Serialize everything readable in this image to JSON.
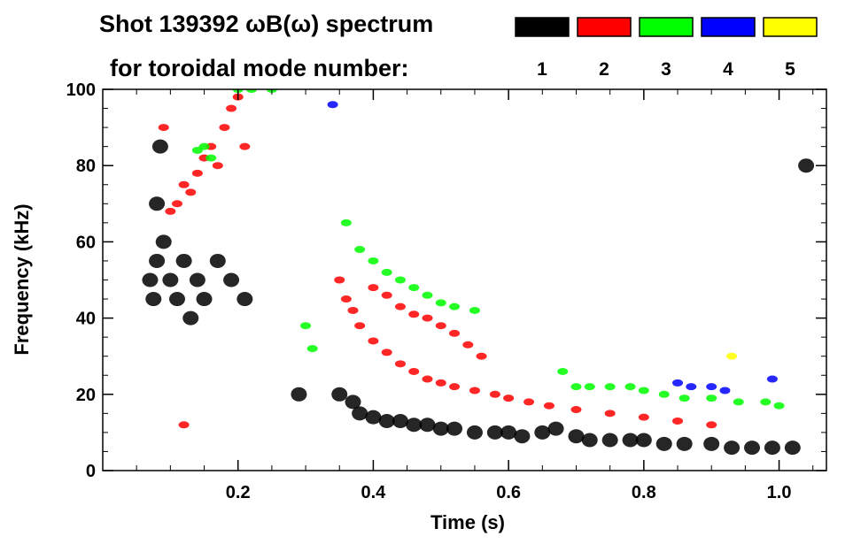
{
  "chart_data": {
    "type": "heatmap",
    "title_line1": "Shot 139392 ωB(ω) spectrum",
    "title_line2": "for toroidal mode number:",
    "xlabel": "Time (s)",
    "ylabel": "Frequency (kHz)",
    "xlim": [
      0.0,
      1.07
    ],
    "ylim": [
      0,
      100
    ],
    "x_ticks": [
      0.2,
      0.4,
      0.6,
      0.8,
      1.0
    ],
    "x_tick_labels": [
      "0.2",
      "0.4",
      "0.6",
      "0.8",
      "1.0"
    ],
    "y_ticks": [
      0,
      20,
      40,
      60,
      80,
      100
    ],
    "y_tick_labels": [
      "0",
      "20",
      "40",
      "60",
      "80",
      "100"
    ],
    "legend": [
      {
        "label": "1",
        "color": "#000000"
      },
      {
        "label": "2",
        "color": "#ff0000"
      },
      {
        "label": "3",
        "color": "#00ff00"
      },
      {
        "label": "4",
        "color": "#0000ff"
      },
      {
        "label": "5",
        "color": "#ffff00"
      }
    ],
    "legend_placement": "top-right",
    "series": [
      {
        "mode": "1",
        "color": "#000000",
        "points": [
          [
            0.07,
            50
          ],
          [
            0.08,
            55
          ],
          [
            0.075,
            45
          ],
          [
            0.08,
            70
          ],
          [
            0.085,
            85
          ],
          [
            0.09,
            60
          ],
          [
            0.1,
            50
          ],
          [
            0.11,
            45
          ],
          [
            0.12,
            55
          ],
          [
            0.13,
            40
          ],
          [
            0.14,
            50
          ],
          [
            0.15,
            45
          ],
          [
            0.17,
            55
          ],
          [
            0.19,
            50
          ],
          [
            0.21,
            45
          ],
          [
            0.29,
            20
          ],
          [
            0.35,
            20
          ],
          [
            0.37,
            18
          ],
          [
            0.38,
            15
          ],
          [
            0.4,
            14
          ],
          [
            0.42,
            13
          ],
          [
            0.44,
            13
          ],
          [
            0.46,
            12
          ],
          [
            0.48,
            12
          ],
          [
            0.5,
            11
          ],
          [
            0.52,
            11
          ],
          [
            0.55,
            10
          ],
          [
            0.58,
            10
          ],
          [
            0.6,
            10
          ],
          [
            0.62,
            9
          ],
          [
            0.65,
            10
          ],
          [
            0.67,
            11
          ],
          [
            0.7,
            9
          ],
          [
            0.72,
            8
          ],
          [
            0.75,
            8
          ],
          [
            0.78,
            8
          ],
          [
            0.8,
            8
          ],
          [
            0.83,
            7
          ],
          [
            0.86,
            7
          ],
          [
            0.9,
            7
          ],
          [
            0.93,
            6
          ],
          [
            0.96,
            6
          ],
          [
            0.99,
            6
          ],
          [
            1.02,
            6
          ],
          [
            1.04,
            80
          ]
        ]
      },
      {
        "mode": "2",
        "color": "#ff0000",
        "points": [
          [
            0.09,
            90
          ],
          [
            0.1,
            68
          ],
          [
            0.11,
            70
          ],
          [
            0.12,
            75
          ],
          [
            0.13,
            73
          ],
          [
            0.14,
            78
          ],
          [
            0.15,
            82
          ],
          [
            0.16,
            85
          ],
          [
            0.17,
            80
          ],
          [
            0.18,
            90
          ],
          [
            0.19,
            95
          ],
          [
            0.2,
            98
          ],
          [
            0.21,
            85
          ],
          [
            0.35,
            50
          ],
          [
            0.36,
            45
          ],
          [
            0.37,
            42
          ],
          [
            0.38,
            38
          ],
          [
            0.4,
            34
          ],
          [
            0.42,
            31
          ],
          [
            0.44,
            28
          ],
          [
            0.46,
            26
          ],
          [
            0.48,
            24
          ],
          [
            0.5,
            23
          ],
          [
            0.52,
            22
          ],
          [
            0.55,
            21
          ],
          [
            0.58,
            20
          ],
          [
            0.6,
            19
          ],
          [
            0.63,
            18
          ],
          [
            0.66,
            17
          ],
          [
            0.7,
            16
          ],
          [
            0.75,
            15
          ],
          [
            0.8,
            14
          ],
          [
            0.85,
            13
          ],
          [
            0.9,
            12
          ],
          [
            0.4,
            48
          ],
          [
            0.42,
            46
          ],
          [
            0.44,
            43
          ],
          [
            0.46,
            41
          ],
          [
            0.48,
            40
          ],
          [
            0.5,
            38
          ],
          [
            0.52,
            36
          ],
          [
            0.54,
            33
          ],
          [
            0.56,
            30
          ],
          [
            0.12,
            12
          ]
        ]
      },
      {
        "mode": "3",
        "color": "#00ff00",
        "points": [
          [
            0.14,
            84
          ],
          [
            0.15,
            85
          ],
          [
            0.16,
            82
          ],
          [
            0.2,
            100
          ],
          [
            0.22,
            100
          ],
          [
            0.25,
            100
          ],
          [
            0.3,
            38
          ],
          [
            0.31,
            32
          ],
          [
            0.36,
            65
          ],
          [
            0.38,
            58
          ],
          [
            0.4,
            55
          ],
          [
            0.42,
            52
          ],
          [
            0.44,
            50
          ],
          [
            0.46,
            48
          ],
          [
            0.48,
            46
          ],
          [
            0.5,
            44
          ],
          [
            0.52,
            43
          ],
          [
            0.55,
            42
          ],
          [
            0.7,
            22
          ],
          [
            0.72,
            22
          ],
          [
            0.75,
            22
          ],
          [
            0.78,
            22
          ],
          [
            0.8,
            21
          ],
          [
            0.83,
            20
          ],
          [
            0.86,
            19
          ],
          [
            0.9,
            19
          ],
          [
            0.94,
            18
          ],
          [
            0.98,
            18
          ],
          [
            1.0,
            17
          ],
          [
            0.68,
            26
          ]
        ]
      },
      {
        "mode": "4",
        "color": "#0000ff",
        "points": [
          [
            0.34,
            96
          ],
          [
            0.85,
            23
          ],
          [
            0.87,
            22
          ],
          [
            0.9,
            22
          ],
          [
            0.92,
            21
          ],
          [
            0.99,
            24
          ]
        ]
      },
      {
        "mode": "5",
        "color": "#ffff00",
        "points": [
          [
            0.93,
            30
          ]
        ]
      }
    ]
  }
}
